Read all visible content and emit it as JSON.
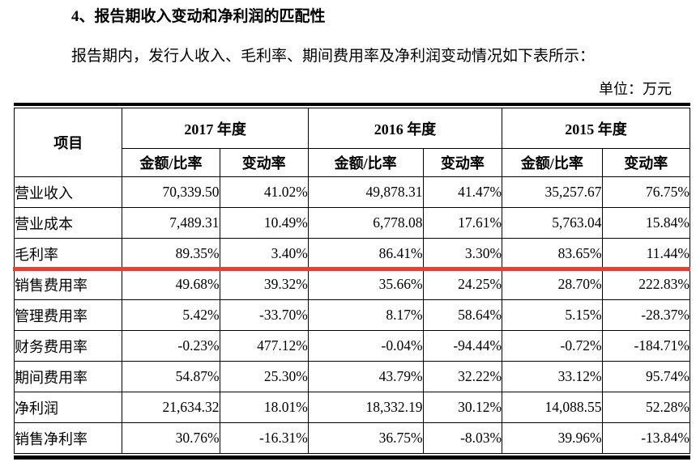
{
  "page": {
    "heading": "4、报告期收入变动和净利润的匹配性",
    "intro": "报告期内，发行人收入、毛利率、期间费用率及净利润变动情况如下表所示：",
    "unit_label": "单位：万元"
  },
  "table": {
    "item_header": "项目",
    "year_groups": [
      {
        "year": "2017 年度"
      },
      {
        "year": "2016 年度"
      },
      {
        "year": "2015 年度"
      }
    ],
    "sub_headers": [
      "金额/比率",
      "变动率"
    ],
    "rows": [
      {
        "label": "营业收入",
        "values": [
          "70,339.50",
          "41.02%",
          "49,878.31",
          "41.47%",
          "35,257.67",
          "76.75%"
        ],
        "highlight": false
      },
      {
        "label": "营业成本",
        "values": [
          "7,489.31",
          "10.49%",
          "6,778.08",
          "17.61%",
          "5,763.04",
          "15.84%"
        ],
        "highlight": false
      },
      {
        "label": "毛利率",
        "values": [
          "89.35%",
          "3.40%",
          "86.41%",
          "3.30%",
          "83.65%",
          "11.44%"
        ],
        "highlight": true
      },
      {
        "label": "销售费用率",
        "values": [
          "49.68%",
          "39.32%",
          "35.66%",
          "24.25%",
          "28.70%",
          "222.83%"
        ],
        "highlight": false
      },
      {
        "label": "管理费用率",
        "values": [
          "5.42%",
          "-33.70%",
          "8.17%",
          "58.64%",
          "5.15%",
          "-28.37%"
        ],
        "highlight": false
      },
      {
        "label": "财务费用率",
        "values": [
          "-0.23%",
          "477.12%",
          "-0.04%",
          "-94.44%",
          "-0.72%",
          "-184.71%"
        ],
        "highlight": false
      },
      {
        "label": "期间费用率",
        "values": [
          "54.87%",
          "25.30%",
          "43.79%",
          "32.22%",
          "33.12%",
          "95.74%"
        ],
        "highlight": false
      },
      {
        "label": "净利润",
        "values": [
          "21,634.32",
          "18.01%",
          "18,332.19",
          "30.12%",
          "14,088.55",
          "52.28%"
        ],
        "highlight": false
      },
      {
        "label": "销售净利率",
        "values": [
          "30.76%",
          "-16.31%",
          "36.75%",
          "-8.03%",
          "39.96%",
          "-13.84%"
        ],
        "highlight": false
      }
    ],
    "highlight_color": "#f23b2e",
    "border_color": "#000000"
  }
}
